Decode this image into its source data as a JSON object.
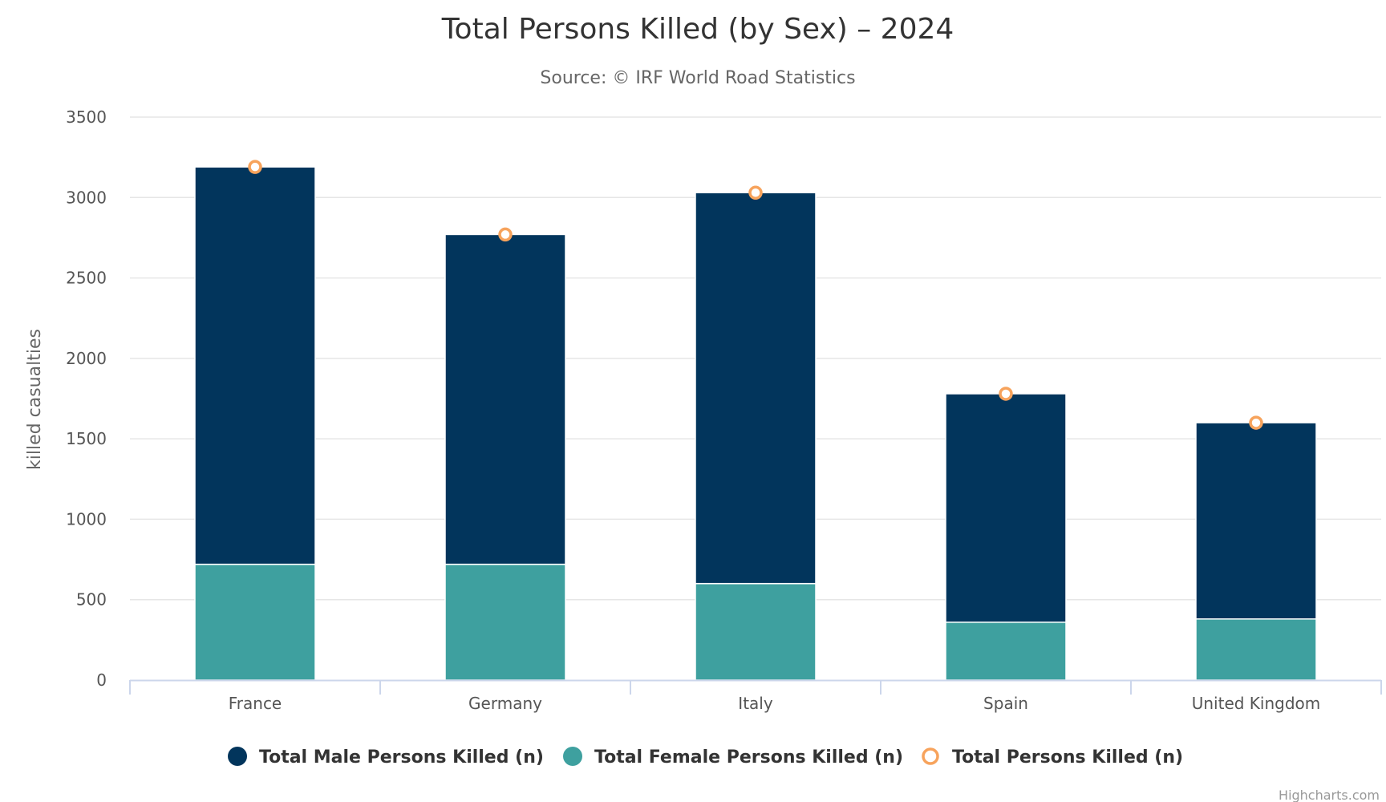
{
  "chart_data": {
    "type": "bar",
    "stacked": true,
    "title": "Total Persons Killed (by Sex) – 2024",
    "subtitle": "Source: © IRF World Road Statistics",
    "ylabel": "killed casualties",
    "xlabel": "",
    "ylim": [
      0,
      3500
    ],
    "yticks": [
      0,
      500,
      1000,
      1500,
      2000,
      2500,
      3000,
      3500
    ],
    "grid": true,
    "legend_position": "bottom-center",
    "categories": [
      "France",
      "Germany",
      "Italy",
      "Spain",
      "United Kingdom"
    ],
    "series": [
      {
        "name": "Total Male Persons Killed (n)",
        "kind": "bar",
        "color": "#02355c",
        "values": [
          2470,
          2050,
          2430,
          1420,
          1220
        ]
      },
      {
        "name": "Total Female Persons Killed (n)",
        "kind": "bar",
        "color": "#3ea09f",
        "values": [
          720,
          720,
          600,
          360,
          380
        ]
      },
      {
        "name": "Total Persons Killed (n)",
        "kind": "marker",
        "color": "#f7a35c",
        "values": [
          3190,
          2770,
          3030,
          1780,
          1600
        ]
      }
    ],
    "credits": "Highcharts.com"
  }
}
